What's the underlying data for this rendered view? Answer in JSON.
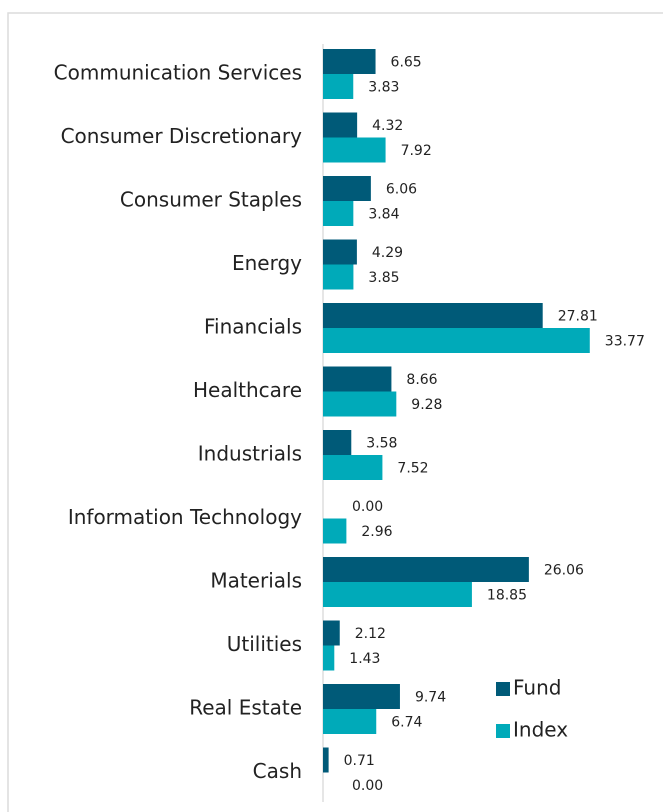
{
  "chart_data": {
    "type": "bar",
    "orientation": "horizontal",
    "categories": [
      "Communication Services",
      "Consumer Discretionary",
      "Consumer Staples",
      "Energy",
      "Financials",
      "Healthcare",
      "Industrials",
      "Information Technology",
      "Materials",
      "Utilities",
      "Real Estate",
      "Cash"
    ],
    "series": [
      {
        "name": "Fund",
        "color": "#005a78",
        "values": [
          6.65,
          4.32,
          6.06,
          4.29,
          27.81,
          8.66,
          3.58,
          0,
          26.06,
          2.12,
          9.74,
          0.71
        ],
        "value_labels": [
          "6.65",
          "4.32",
          "6.06",
          "4.29",
          "27.81",
          "8.66",
          "3.58",
          "0.00",
          "26.06",
          "2.12",
          "9.74",
          "0.71"
        ]
      },
      {
        "name": "Index",
        "color": "#00aab9",
        "values": [
          3.83,
          7.92,
          3.84,
          3.85,
          33.77,
          9.28,
          7.52,
          2.96,
          18.85,
          1.43,
          6.74,
          0
        ],
        "value_labels": [
          "3.83",
          "7.92",
          "3.84",
          "3.85",
          "33.77",
          "9.28",
          "7.52",
          "2.96",
          "18.85",
          "1.43",
          "6.74",
          "0.00"
        ]
      }
    ],
    "legend": "lower right"
  }
}
